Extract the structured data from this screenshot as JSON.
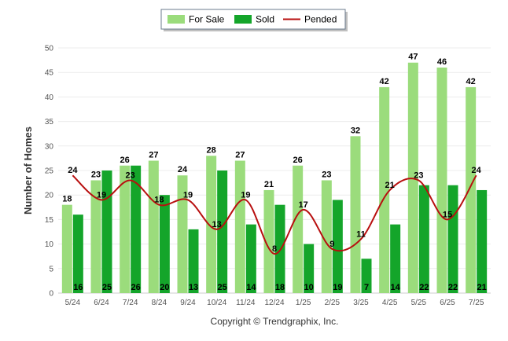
{
  "chart_data": {
    "type": "bar",
    "title": "",
    "ylabel": "Number of Homes",
    "xlabel": "",
    "ylim": [
      0,
      50
    ],
    "yticks": [
      0,
      5,
      10,
      15,
      20,
      25,
      30,
      35,
      40,
      45,
      50
    ],
    "grid": true,
    "legend_position": "top-center",
    "categories": [
      "5/24",
      "6/24",
      "7/24",
      "8/24",
      "9/24",
      "10/24",
      "11/24",
      "12/24",
      "1/25",
      "2/25",
      "3/25",
      "4/25",
      "5/25",
      "6/25",
      "7/25"
    ],
    "series": [
      {
        "name": "For Sale",
        "kind": "bar",
        "color": "#9bdc7c",
        "values": [
          18,
          23,
          26,
          27,
          24,
          28,
          27,
          21,
          26,
          23,
          32,
          42,
          47,
          46,
          42
        ]
      },
      {
        "name": "Sold",
        "kind": "bar",
        "color": "#14a52a",
        "values": [
          16,
          25,
          26,
          20,
          13,
          25,
          14,
          18,
          10,
          19,
          7,
          14,
          22,
          22,
          21
        ]
      },
      {
        "name": "Pended",
        "kind": "line",
        "color": "#b80f0f",
        "values": [
          24,
          19,
          23,
          18,
          19,
          13,
          19,
          8,
          17,
          9,
          11,
          21,
          23,
          15,
          24
        ]
      }
    ]
  },
  "credit": "Copyright © Trendgraphix, Inc."
}
